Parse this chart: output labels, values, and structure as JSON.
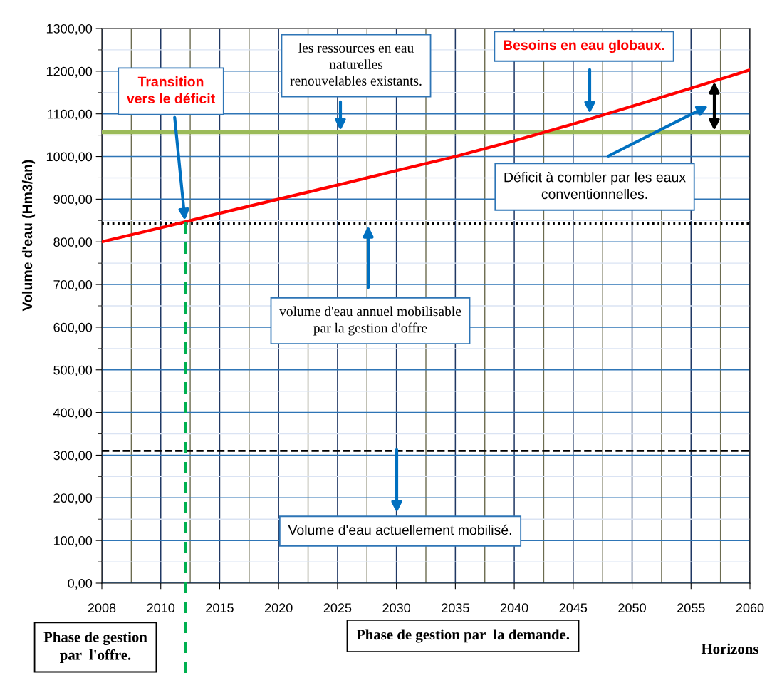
{
  "chart_data": {
    "type": "line",
    "xlabel": "Horizons",
    "ylabel": "Volume d'eau (Hm3/an)",
    "categories": [
      "2008",
      "2010",
      "2015",
      "2020",
      "2025",
      "2030",
      "2035",
      "2040",
      "2045",
      "2050",
      "2055",
      "2060"
    ],
    "series": [
      {
        "color": "#ff0000",
        "values": [
          800,
          833,
          867,
          900,
          933,
          967,
          1000,
          1037,
          1076,
          1118,
          1160,
          1203
        ]
      }
    ],
    "ylim": [
      0,
      1300
    ],
    "yticks": [
      {
        "value": 0,
        "label": "0,00"
      },
      {
        "value": 100,
        "label": "100,00"
      },
      {
        "value": 200,
        "label": "200,00"
      },
      {
        "value": 300,
        "label": "300,00"
      },
      {
        "value": 400,
        "label": "400,00"
      },
      {
        "value": 500,
        "label": "500,00"
      },
      {
        "value": 600,
        "label": "600,00"
      },
      {
        "value": 700,
        "label": "700,00"
      },
      {
        "value": 800,
        "label": "800,00"
      },
      {
        "value": 900,
        "label": "900,00"
      },
      {
        "value": 1000,
        "label": "1000,00"
      },
      {
        "value": 1100,
        "label": "1100,00"
      },
      {
        "value": 1200,
        "label": "1200,00"
      },
      {
        "value": 1300,
        "label": "1300,00"
      }
    ],
    "grid": true,
    "legend": false,
    "marker": "none",
    "line_style": "solid",
    "ref_lines": [
      {
        "axis": "y",
        "value": 1057,
        "color": "#9bbb59",
        "line_style": "solid"
      },
      {
        "axis": "y",
        "value": 843,
        "color": "#000000",
        "line_style": "dotted"
      },
      {
        "axis": "y",
        "value": 310,
        "color": "#000000",
        "line_style": "dashed"
      }
    ],
    "annotations": [
      "les ressources en eau\nnaturelles\nrenouvelables existants.",
      "Besoins en eau globaux.",
      "Transition\nvers le déficit",
      "Déficit à combler par les eaux\nconventionnelles.",
      "volume d'eau annuel mobilisable\npar la gestion d'offre",
      "Volume d'eau actuellement mobilisé.",
      "Phase de gestion\npar  l'offre.",
      "Phase de gestion par  la demande."
    ]
  }
}
